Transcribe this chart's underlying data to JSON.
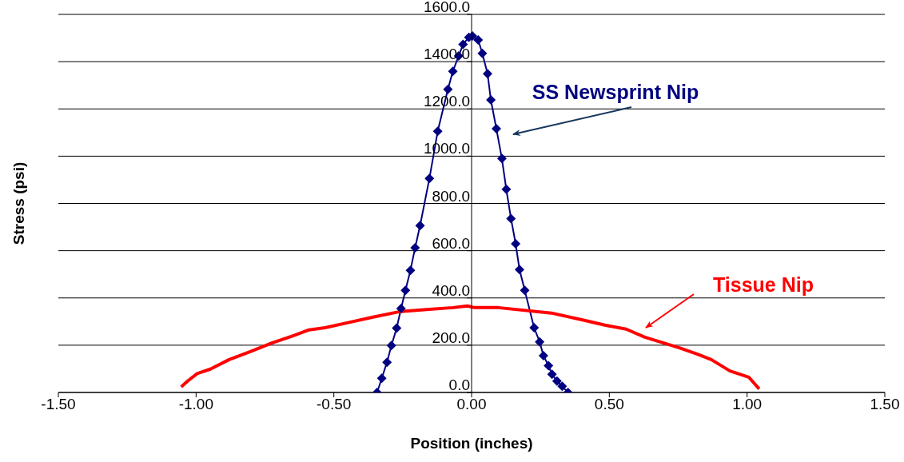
{
  "chart_data": {
    "type": "line",
    "xlabel": "Position (inches)",
    "ylabel": "Stress (psi)",
    "xlim": [
      -1.5,
      1.5
    ],
    "xticks": [
      {
        "value": -1.5,
        "label": "-1.50"
      },
      {
        "value": -1.0,
        "label": "-1.00"
      },
      {
        "value": -0.5,
        "label": "-0.50"
      },
      {
        "value": 0,
        "label": "0.00"
      },
      {
        "value": 0.5,
        "label": "0.50"
      },
      {
        "value": 1.0,
        "label": "1.00"
      },
      {
        "value": 1.5,
        "label": "1.50"
      }
    ],
    "ylim": [
      0,
      1600
    ],
    "yticks": [
      {
        "value": 0,
        "label": "0.0"
      },
      {
        "value": 200,
        "label": "200.0"
      },
      {
        "value": 400,
        "label": "400.0"
      },
      {
        "value": 600,
        "label": "600.0"
      },
      {
        "value": 800,
        "label": "800.0"
      },
      {
        "value": 1000,
        "label": "1000.0"
      },
      {
        "value": 1200,
        "label": "1200.0"
      },
      {
        "value": 1400,
        "label": "1400.0"
      },
      {
        "value": 1600,
        "label": "1600.0"
      }
    ],
    "grid": "y",
    "line_style": "solid",
    "series": [
      {
        "name": "SS Newsprint Nip",
        "color": "#000080",
        "marker": "diamond",
        "x": [
          -0.343,
          -0.326,
          -0.307,
          -0.291,
          -0.272,
          -0.256,
          -0.24,
          -0.222,
          -0.205,
          -0.187,
          -0.153,
          -0.123,
          -0.086,
          -0.068,
          -0.047,
          -0.031,
          -0.01,
          0.003,
          0.024,
          0.039,
          0.058,
          0.07,
          0.09,
          0.11,
          0.126,
          0.143,
          0.16,
          0.174,
          0.193,
          0.227,
          0.247,
          0.261,
          0.279,
          0.292,
          0.31,
          0.329,
          0.35
        ],
        "values": [
          0,
          60,
          128,
          199,
          272,
          355,
          432,
          517,
          612,
          706,
          906,
          1105,
          1283,
          1359,
          1424,
          1473,
          1503,
          1509,
          1492,
          1435,
          1349,
          1238,
          1116,
          990,
          860,
          736,
          629,
          520,
          432,
          274,
          214,
          156,
          113,
          77,
          48,
          26,
          0
        ]
      },
      {
        "name": "Tissue Nip",
        "color": "#ff0000",
        "marker": "none",
        "x": [
          -1.054,
          -1.03,
          -0.996,
          -0.948,
          -0.88,
          -0.803,
          -0.725,
          -0.648,
          -0.59,
          -0.532,
          -0.455,
          -0.358,
          -0.261,
          -0.164,
          -0.068,
          -0.015,
          0.01,
          0.097,
          0.29,
          0.406,
          0.484,
          0.561,
          0.629,
          0.754,
          0.822,
          0.87,
          0.938,
          1.006,
          1.044
        ],
        "values": [
          24,
          49,
          80,
          99,
          139,
          173,
          209,
          240,
          265,
          274,
          294,
          319,
          342,
          351,
          359,
          366,
          359,
          359,
          336,
          306,
          285,
          268,
          234,
          189,
          161,
          139,
          91,
          65,
          15
        ]
      }
    ]
  }
}
